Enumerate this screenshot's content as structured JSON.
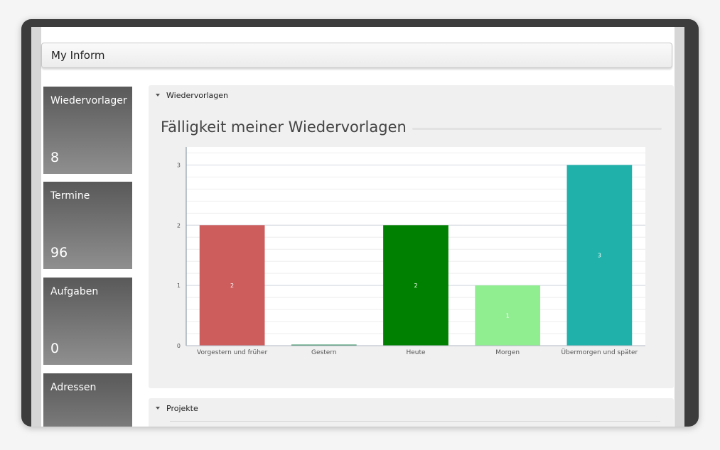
{
  "app": {
    "title": "My Inform"
  },
  "tiles": [
    {
      "label": "Wiedervorlager",
      "value": "8"
    },
    {
      "label": "Termine",
      "value": "96"
    },
    {
      "label": "Aufgaben",
      "value": "0"
    },
    {
      "label": "Adressen",
      "value": ""
    }
  ],
  "panels": {
    "wiedervorlagen": {
      "label": "Wiedervorlagen"
    },
    "projekte": {
      "label": "Projekte"
    }
  },
  "chart_data": {
    "type": "bar",
    "title": "Fälligkeit meiner Wiedervorlagen",
    "categories": [
      "Vorgestern und früher",
      "Gestern",
      "Heute",
      "Morgen",
      "Übermorgen und später"
    ],
    "values": [
      2,
      0,
      2,
      1,
      3
    ],
    "data_labels": [
      "2",
      "",
      "2",
      "1",
      "3"
    ],
    "colors": [
      "#cd5c5c",
      "#2e8b57",
      "#008000",
      "#90ee90",
      "#20b2aa"
    ],
    "ylim": [
      0,
      3.3
    ],
    "yticks": [
      0,
      1,
      2,
      3
    ],
    "grid": true,
    "xlabel": "",
    "ylabel": ""
  }
}
